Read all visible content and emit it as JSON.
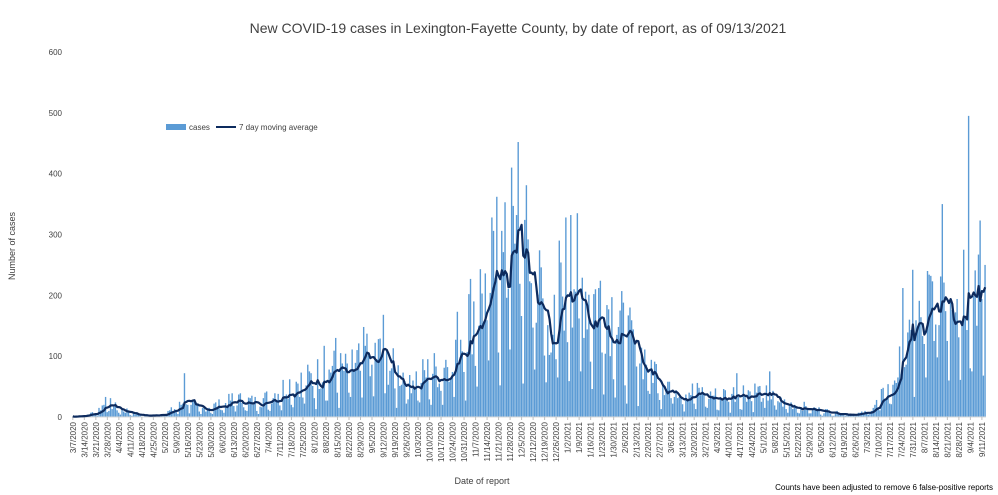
{
  "chart_data": {
    "type": "bar",
    "title": "New COVID-19 cases in Lexington-Fayette County, by date of report, as of 09/13/2021",
    "xlabel": "Date of report",
    "ylabel": "Number of cases",
    "ylim": [
      0,
      600
    ],
    "yticks": [
      0,
      100,
      200,
      300,
      400,
      500,
      600
    ],
    "grid": false,
    "legend_position": "top-left",
    "note": "Counts have been adjusted to remove 6 false-positive reports",
    "x_start": "2020-03-07",
    "x_end": "2021-09-13",
    "x_tick_labels": [
      "3/7/2020",
      "3/14/2020",
      "3/21/2020",
      "3/28/2020",
      "4/4/2020",
      "4/11/2020",
      "4/18/2020",
      "4/25/2020",
      "5/2/2020",
      "5/9/2020",
      "5/16/2020",
      "5/23/2020",
      "5/30/2020",
      "6/6/2020",
      "6/13/2020",
      "6/20/2020",
      "6/27/2020",
      "7/4/2020",
      "7/11/2020",
      "7/18/2020",
      "7/25/2020",
      "8/1/2020",
      "8/8/2020",
      "8/15/2020",
      "8/22/2020",
      "8/29/2020",
      "9/5/2020",
      "9/12/2020",
      "9/19/2020",
      "9/26/2020",
      "10/3/2020",
      "10/10/2020",
      "10/17/2020",
      "10/24/2020",
      "10/31/2020",
      "11/7/2020",
      "11/14/2020",
      "11/21/2020",
      "11/28/2020",
      "12/5/2020",
      "12/12/2020",
      "12/19/2020",
      "12/26/2020",
      "1/2/2021",
      "1/9/2021",
      "1/16/2021",
      "1/23/2021",
      "1/30/2021",
      "2/6/2021",
      "2/13/2021",
      "2/20/2021",
      "2/27/2021",
      "3/6/2021",
      "3/13/2021",
      "3/20/2021",
      "3/27/2021",
      "4/3/2021",
      "4/10/2021",
      "4/17/2021",
      "4/24/2021",
      "5/1/2021",
      "5/8/2021",
      "5/15/2021",
      "5/22/2021",
      "5/29/2021",
      "6/5/2021",
      "6/12/2021",
      "6/19/2021",
      "6/26/2021",
      "7/3/2021",
      "7/10/2021",
      "7/17/2021",
      "7/24/2021",
      "7/31/2021",
      "8/7/2021",
      "8/14/2021",
      "8/21/2021",
      "8/28/2021",
      "9/4/2021",
      "9/11/2021"
    ],
    "series": [
      {
        "name": "cases",
        "color": "#5b9bd5",
        "weekly_anchor_values": [
          1,
          3,
          8,
          25,
          14,
          8,
          3,
          3,
          6,
          15,
          30,
          12,
          18,
          22,
          30,
          28,
          25,
          33,
          45,
          58,
          60,
          65,
          85,
          78,
          75,
          100,
          110,
          100,
          75,
          70,
          65,
          75,
          80,
          110,
          150,
          190,
          215,
          260,
          240,
          280,
          255,
          180,
          140,
          260,
          230,
          200,
          195,
          175,
          135,
          110,
          95,
          65,
          55,
          45,
          42,
          40,
          35,
          38,
          42,
          45,
          40,
          30,
          22,
          20,
          15,
          12,
          8,
          6,
          5,
          8,
          25,
          50,
          90,
          120,
          170,
          220,
          260,
          240,
          230,
          250
        ],
        "peaks": [
          {
            "date": "2020-03-27",
            "value": 33
          },
          {
            "date": "2020-05-14",
            "value": 72
          },
          {
            "date": "2020-08-07",
            "value": 117
          },
          {
            "date": "2020-08-14",
            "value": 130
          },
          {
            "date": "2020-09-12",
            "value": 168
          },
          {
            "date": "2020-11-20",
            "value": 362
          },
          {
            "date": "2020-11-29",
            "value": 410
          },
          {
            "date": "2020-12-03",
            "value": 452
          },
          {
            "date": "2020-12-28",
            "value": 290
          },
          {
            "date": "2021-01-04",
            "value": 332
          },
          {
            "date": "2021-04-15",
            "value": 72
          },
          {
            "date": "2021-05-05",
            "value": 75
          },
          {
            "date": "2021-07-25",
            "value": 212
          },
          {
            "date": "2021-07-31",
            "value": 242
          },
          {
            "date": "2021-08-18",
            "value": 350
          },
          {
            "date": "2021-09-03",
            "value": 495
          }
        ]
      },
      {
        "name": "7 day moving average",
        "color": "#0d2b5e",
        "type": "line",
        "note": "7-day trailing mean of cases"
      }
    ]
  }
}
